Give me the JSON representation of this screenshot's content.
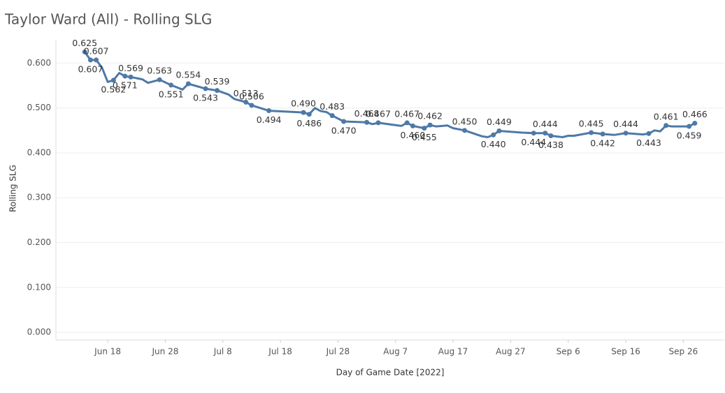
{
  "chart_data": {
    "type": "line",
    "title": "Taylor Ward (All) - Rolling SLG",
    "x_label": "Day of Game Date [2022]",
    "y_label": "Rolling SLG",
    "color": "#4e79a7",
    "grid": true,
    "x": [
      "2022-06-14",
      "2022-06-15",
      "2022-06-16",
      "2022-06-17",
      "2022-06-18",
      "2022-06-19",
      "2022-06-20",
      "2022-06-21",
      "2022-06-22",
      "2022-06-24",
      "2022-06-25",
      "2022-06-27",
      "2022-06-29",
      "2022-07-01",
      "2022-07-02",
      "2022-07-05",
      "2022-07-07",
      "2022-07-09",
      "2022-07-10",
      "2022-07-12",
      "2022-07-13",
      "2022-07-16",
      "2022-07-22",
      "2022-07-23",
      "2022-07-24",
      "2022-07-25",
      "2022-07-26",
      "2022-07-27",
      "2022-07-29",
      "2022-07-31",
      "2022-08-02",
      "2022-08-03",
      "2022-08-04",
      "2022-08-08",
      "2022-08-09",
      "2022-08-10",
      "2022-08-12",
      "2022-08-13",
      "2022-08-14",
      "2022-08-16",
      "2022-08-17",
      "2022-08-19",
      "2022-08-22",
      "2022-08-23",
      "2022-08-24",
      "2022-08-25",
      "2022-08-29",
      "2022-08-31",
      "2022-09-02",
      "2022-09-03",
      "2022-09-05",
      "2022-09-06",
      "2022-09-07",
      "2022-09-10",
      "2022-09-12",
      "2022-09-14",
      "2022-09-16",
      "2022-09-19",
      "2022-09-20",
      "2022-09-21",
      "2022-09-22",
      "2022-09-23",
      "2022-09-24",
      "2022-09-27",
      "2022-09-28"
    ],
    "values": [
      0.625,
      0.607,
      0.607,
      0.59,
      0.558,
      0.562,
      0.578,
      0.571,
      0.569,
      0.564,
      0.556,
      0.563,
      0.551,
      0.541,
      0.554,
      0.543,
      0.539,
      0.53,
      0.52,
      0.513,
      0.506,
      0.494,
      0.49,
      0.486,
      0.5,
      0.493,
      0.491,
      0.483,
      0.47,
      0.469,
      0.468,
      0.464,
      0.467,
      0.46,
      0.467,
      0.46,
      0.455,
      0.462,
      0.459,
      0.461,
      0.455,
      0.45,
      0.437,
      0.435,
      0.44,
      0.449,
      0.445,
      0.444,
      0.444,
      0.438,
      0.435,
      0.438,
      0.438,
      0.445,
      0.442,
      0.44,
      0.444,
      0.441,
      0.443,
      0.45,
      0.448,
      0.461,
      0.459,
      0.459,
      0.466
    ],
    "value_labels": [
      "0.625",
      "0.607",
      "0.607",
      null,
      null,
      "0.562",
      null,
      "0.571",
      "0.569",
      null,
      null,
      "0.563",
      "0.551",
      null,
      "0.554",
      "0.543",
      "0.539",
      null,
      null,
      "0.513",
      "0.506",
      "0.494",
      "0.490",
      "0.486",
      null,
      null,
      null,
      "0.483",
      "0.470",
      null,
      "0.468",
      null,
      "0.467",
      null,
      "0.467",
      "0.460",
      "0.455",
      "0.462",
      null,
      null,
      null,
      "0.450",
      null,
      null,
      "0.440",
      "0.449",
      null,
      "0.444",
      "0.444",
      "0.438",
      null,
      null,
      null,
      "0.445",
      "0.442",
      null,
      "0.444",
      null,
      "0.443",
      null,
      null,
      "0.461",
      null,
      "0.459",
      "0.466"
    ],
    "ylim": [
      -0.017,
      0.652
    ],
    "yticks": [
      {
        "value": 0,
        "label": "0.000"
      },
      {
        "value": 0.1,
        "label": "0.100"
      },
      {
        "value": 0.2,
        "label": "0.200"
      },
      {
        "value": 0.3,
        "label": "0.300"
      },
      {
        "value": 0.4,
        "label": "0.400"
      },
      {
        "value": 0.5,
        "label": "0.500"
      },
      {
        "value": 0.6,
        "label": "0.600"
      }
    ],
    "xlim": [
      "2022-06-09",
      "2022-10-03"
    ],
    "xticks": [
      {
        "value": "2022-06-18",
        "label": "Jun 18"
      },
      {
        "value": "2022-06-28",
        "label": "Jun 28"
      },
      {
        "value": "2022-07-08",
        "label": "Jul 8"
      },
      {
        "value": "2022-07-18",
        "label": "Jul 18"
      },
      {
        "value": "2022-07-28",
        "label": "Jul 28"
      },
      {
        "value": "2022-08-07",
        "label": "Aug 7"
      },
      {
        "value": "2022-08-17",
        "label": "Aug 17"
      },
      {
        "value": "2022-08-27",
        "label": "Aug 27"
      },
      {
        "value": "2022-09-06",
        "label": "Sep 6"
      },
      {
        "value": "2022-09-16",
        "label": "Sep 16"
      },
      {
        "value": "2022-09-26",
        "label": "Sep 26"
      }
    ]
  }
}
